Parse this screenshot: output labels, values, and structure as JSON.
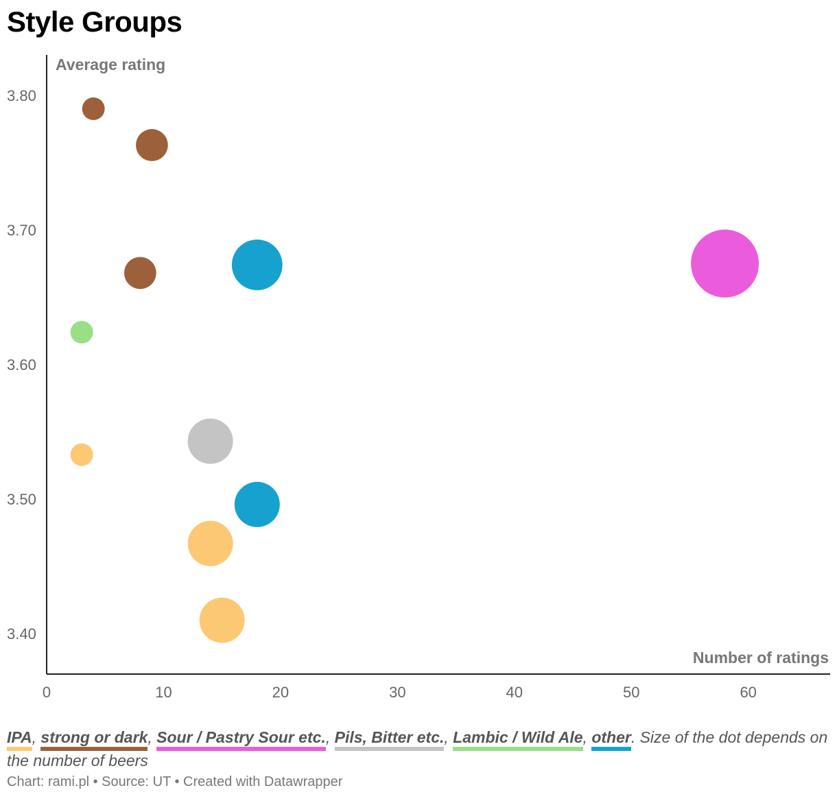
{
  "title": "Style Groups",
  "chart_data": {
    "type": "scatter",
    "title": "Style Groups",
    "xlabel": "Number of ratings",
    "ylabel": "Average rating",
    "xlim": [
      0,
      67
    ],
    "ylim": [
      3.37,
      3.83
    ],
    "xticks": [
      0,
      10,
      20,
      30,
      40,
      50,
      60
    ],
    "yticks": [
      3.4,
      3.5,
      3.6,
      3.7,
      3.8
    ],
    "ytick_labels": [
      "3.40",
      "3.50",
      "3.60",
      "3.70",
      "3.80"
    ],
    "size_note": "Size of the dot depends on the number of beers",
    "series": [
      {
        "name": "IPA",
        "color": "#fdc873",
        "points": [
          {
            "x": 3,
            "y": 3.533,
            "size": 1
          },
          {
            "x": 14,
            "y": 3.467,
            "size": 4
          },
          {
            "x": 15,
            "y": 3.41,
            "size": 4
          }
        ]
      },
      {
        "name": "strong or dark",
        "color": "#9c613a",
        "points": [
          {
            "x": 4,
            "y": 3.79,
            "size": 1
          },
          {
            "x": 9,
            "y": 3.763,
            "size": 2
          },
          {
            "x": 8,
            "y": 3.668,
            "size": 2
          }
        ]
      },
      {
        "name": "Sour / Pastry Sour etc.",
        "color": "#eb5cdc",
        "points": [
          {
            "x": 58,
            "y": 3.675,
            "size": 9
          }
        ]
      },
      {
        "name": "Pils, Bitter etc.",
        "color": "#c4c4c4",
        "points": [
          {
            "x": 14,
            "y": 3.543,
            "size": 4
          }
        ]
      },
      {
        "name": "Lambic / Wild Ale",
        "color": "#98df86",
        "points": [
          {
            "x": 3,
            "y": 3.624,
            "size": 1
          }
        ]
      },
      {
        "name": "other",
        "color": "#16a1cf",
        "points": [
          {
            "x": 18,
            "y": 3.674,
            "size": 5
          },
          {
            "x": 18,
            "y": 3.496,
            "size": 4
          }
        ]
      }
    ]
  },
  "legend": {
    "items": [
      {
        "label": "IPA",
        "color": "#fdc873"
      },
      {
        "label": "strong or dark",
        "color": "#9c613a"
      },
      {
        "label": "Sour / Pastry Sour etc.",
        "color": "#eb5cdc"
      },
      {
        "label": "Pils, Bitter etc.",
        "color": "#c4c4c4"
      },
      {
        "label": "Lambic / Wild Ale",
        "color": "#98df86"
      },
      {
        "label": "other",
        "color": "#16a1cf"
      }
    ],
    "note": ". Size of the dot depends on the number of beers"
  },
  "footer": "Chart: rami.pl • Source: UT • Created with Datawrapper"
}
